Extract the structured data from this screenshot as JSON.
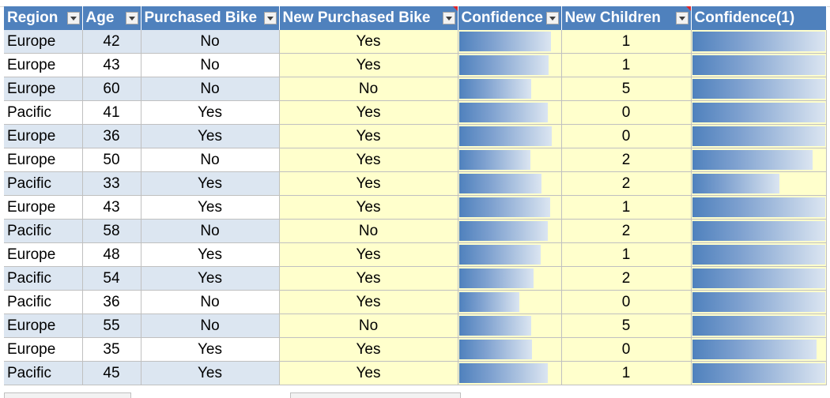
{
  "colors": {
    "header_bg": "#4f81bd",
    "header_text": "#ffffff",
    "band_row": "#dce6f1",
    "highlight_col": "#ffffcc",
    "databar": "#4f81bd",
    "comment_marker": "#e0262b"
  },
  "headers": [
    {
      "label": "Region",
      "filter_icon": "dropdown-arrow-icon"
    },
    {
      "label": "Age",
      "filter_icon": "dropdown-arrow-icon"
    },
    {
      "label": "Purchased Bike",
      "filter_icon": "dropdown-arrow-icon"
    },
    {
      "label": "New Purchased Bike",
      "filter_icon": "dropdown-arrow-icon",
      "comment": true
    },
    {
      "label": "Confidence",
      "filter_icon": "dropdown-arrow-icon"
    },
    {
      "label": "New Children",
      "filter_icon": "dropdown-arrow-icon",
      "comment": true
    },
    {
      "label": "Confidence(1)",
      "filter_icon": "none"
    }
  ],
  "rows": [
    {
      "region": "Europe",
      "age": "42",
      "purchased": "No",
      "new_purchased": "Yes",
      "confidence": 0.91,
      "new_children": "1",
      "confidence1": 1.0
    },
    {
      "region": "Europe",
      "age": "43",
      "purchased": "No",
      "new_purchased": "Yes",
      "confidence": 0.89,
      "new_children": "1",
      "confidence1": 1.0
    },
    {
      "region": "Europe",
      "age": "60",
      "purchased": "No",
      "new_purchased": "No",
      "confidence": 0.72,
      "new_children": "5",
      "confidence1": 1.0
    },
    {
      "region": "Pacific",
      "age": "41",
      "purchased": "Yes",
      "new_purchased": "Yes",
      "confidence": 0.88,
      "new_children": "0",
      "confidence1": 1.0
    },
    {
      "region": "Europe",
      "age": "36",
      "purchased": "Yes",
      "new_purchased": "Yes",
      "confidence": 0.92,
      "new_children": "0",
      "confidence1": 1.0
    },
    {
      "region": "Europe",
      "age": "50",
      "purchased": "No",
      "new_purchased": "Yes",
      "confidence": 0.71,
      "new_children": "2",
      "confidence1": 0.91
    },
    {
      "region": "Pacific",
      "age": "33",
      "purchased": "Yes",
      "new_purchased": "Yes",
      "confidence": 0.82,
      "new_children": "2",
      "confidence1": 0.66
    },
    {
      "region": "Europe",
      "age": "43",
      "purchased": "Yes",
      "new_purchased": "Yes",
      "confidence": 0.9,
      "new_children": "1",
      "confidence1": 1.0
    },
    {
      "region": "Pacific",
      "age": "58",
      "purchased": "No",
      "new_purchased": "No",
      "confidence": 0.88,
      "new_children": "2",
      "confidence1": 1.0
    },
    {
      "region": "Europe",
      "age": "48",
      "purchased": "Yes",
      "new_purchased": "Yes",
      "confidence": 0.81,
      "new_children": "1",
      "confidence1": 1.0
    },
    {
      "region": "Pacific",
      "age": "54",
      "purchased": "Yes",
      "new_purchased": "Yes",
      "confidence": 0.74,
      "new_children": "2",
      "confidence1": 1.0
    },
    {
      "region": "Pacific",
      "age": "36",
      "purchased": "No",
      "new_purchased": "Yes",
      "confidence": 0.6,
      "new_children": "0",
      "confidence1": 1.0
    },
    {
      "region": "Europe",
      "age": "55",
      "purchased": "No",
      "new_purchased": "No",
      "confidence": 0.72,
      "new_children": "5",
      "confidence1": 1.0
    },
    {
      "region": "Europe",
      "age": "35",
      "purchased": "Yes",
      "new_purchased": "Yes",
      "confidence": 0.73,
      "new_children": "0",
      "confidence1": 0.94
    },
    {
      "region": "Pacific",
      "age": "45",
      "purchased": "Yes",
      "new_purchased": "Yes",
      "confidence": 0.88,
      "new_children": "1",
      "confidence1": 1.0
    }
  ]
}
